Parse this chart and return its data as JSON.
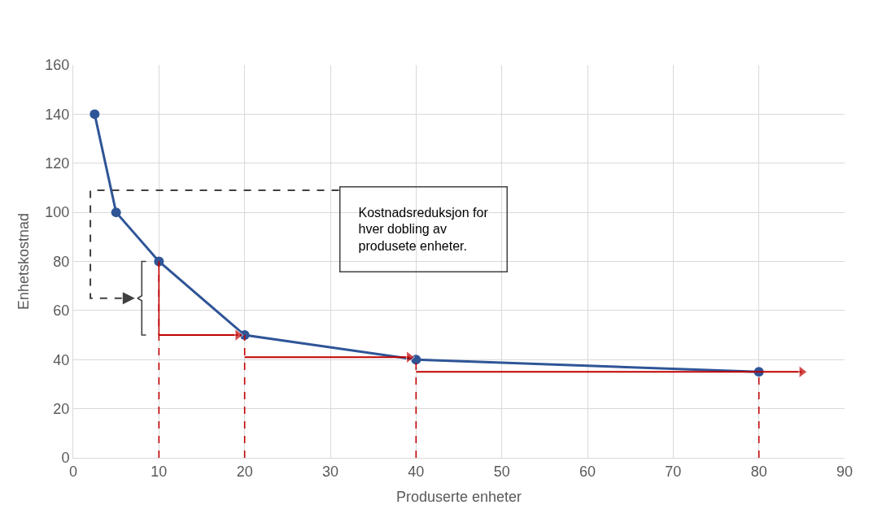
{
  "chart_data": {
    "type": "line",
    "xlabel": "Produserte enheter",
    "ylabel": "Enhetskostnad",
    "x": [
      2.5,
      5,
      10,
      20,
      40,
      80
    ],
    "series": [
      {
        "color": "#2f5597",
        "values": [
          140,
          100,
          80,
          50,
          40,
          35
        ]
      },
      {
        "color": "#c00000",
        "line_style": "dashed",
        "marker": "none",
        "x": [
          10,
          10
        ],
        "values": [
          0,
          80
        ]
      },
      {
        "color": "#c00000",
        "line_style": "dashed",
        "marker": "none",
        "x": [
          20,
          20
        ],
        "values": [
          0,
          50
        ]
      },
      {
        "color": "#c00000",
        "line_style": "dashed",
        "marker": "none",
        "x": [
          40,
          40
        ],
        "values": [
          0,
          40
        ]
      },
      {
        "color": "#c00000",
        "line_style": "dashed",
        "marker": "none",
        "x": [
          80,
          80
        ],
        "values": [
          0,
          35
        ]
      },
      {
        "color": "#c00000",
        "marker": "none",
        "x": [
          10,
          10
        ],
        "values": [
          50,
          80
        ]
      },
      {
        "color": "#c00000",
        "marker": "triangle",
        "x": [
          10,
          19.2
        ],
        "values": [
          50,
          50
        ]
      },
      {
        "color": "#c00000",
        "marker": "triangle",
        "x": [
          20,
          39.2
        ],
        "values": [
          41,
          41
        ]
      },
      {
        "color": "#c00000",
        "marker": "triangle",
        "x": [
          40,
          85
        ],
        "values": [
          35,
          35
        ]
      },
      {
        "color": "#404040",
        "marker": "none",
        "x": [
          8.5,
          8,
          8,
          7.5,
          8,
          8,
          8.5
        ],
        "values": [
          80,
          80,
          66,
          65,
          64,
          50,
          50
        ]
      }
    ],
    "xlim": [
      0,
      90
    ],
    "xticks": [
      0,
      10,
      20,
      30,
      40,
      50,
      60,
      70,
      80,
      90
    ],
    "ylim": [
      0,
      160
    ],
    "yticks": [
      0,
      20,
      40,
      60,
      80,
      100,
      120,
      140,
      160
    ],
    "grid": true,
    "marker": "circle",
    "line_style": "solid",
    "annotations": [
      "Kostnadsreduksjon for hver dobling av produsete enheter."
    ]
  }
}
